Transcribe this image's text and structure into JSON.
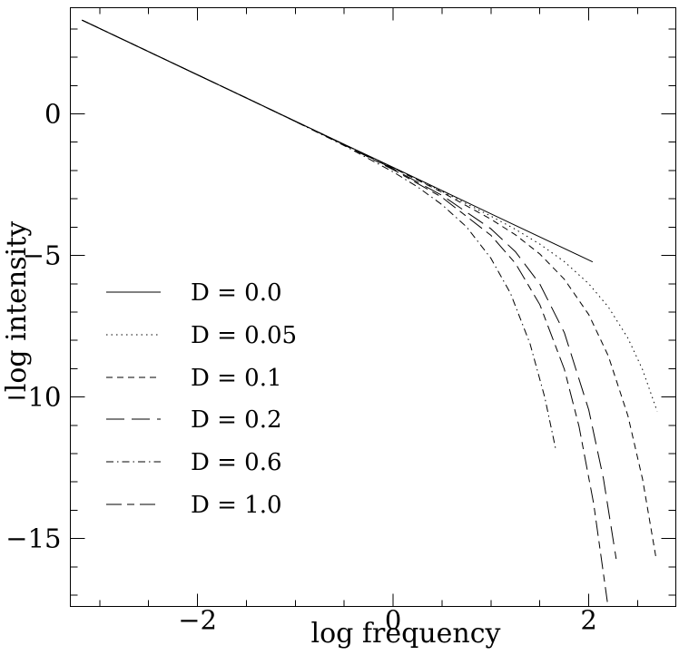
{
  "figure": {
    "background": "#ffffff",
    "line_color": "#000000",
    "line_width": 1
  },
  "chart_data": {
    "type": "line",
    "title": "",
    "xlabel": "log frequency",
    "ylabel": "log intensity",
    "xlim": [
      -3.3,
      2.89
    ],
    "ylim": [
      -17.4,
      3.75
    ],
    "grid": false,
    "x_major_ticks": [
      {
        "v": -2,
        "label": "−2"
      },
      {
        "v": 0,
        "label": "0"
      },
      {
        "v": 2,
        "label": "2"
      }
    ],
    "x_minor_ticks": [
      -3,
      -2.5,
      -1.5,
      -1,
      -0.5,
      0.5,
      1,
      1.5,
      2.5
    ],
    "y_major_ticks": [
      {
        "v": 0,
        "label": "0"
      },
      {
        "v": -5,
        "label": "−5"
      },
      {
        "v": -10,
        "label": "−10"
      },
      {
        "v": -15,
        "label": "−15"
      }
    ],
    "y_minor_ticks": [
      3,
      2,
      1,
      -1,
      -2,
      -3,
      -4,
      -6,
      -7,
      -8,
      -9,
      -11,
      -12,
      -13,
      -14,
      -16,
      -17
    ],
    "line_styles": {
      "solid": [],
      "dotted": [
        1.5,
        4
      ],
      "short-dash": [
        7,
        5
      ],
      "long-dash": [
        20,
        8
      ],
      "dash-dot": [
        8,
        4,
        1.5,
        4
      ],
      "long-short-dash": [
        17,
        6,
        8,
        6
      ]
    },
    "legend": {
      "position": "middle-left",
      "entries": [
        {
          "label": "D = 0.0",
          "line_style": "solid"
        },
        {
          "label": "D = 0.05",
          "line_style": "dotted"
        },
        {
          "label": "D = 0.1",
          "line_style": "short-dash"
        },
        {
          "label": "D = 0.2",
          "line_style": "long-dash"
        },
        {
          "label": "D = 0.6",
          "line_style": "dash-dot"
        },
        {
          "label": "D = 1.0",
          "line_style": "long-short-dash"
        }
      ]
    },
    "series": [
      {
        "name": "D = 0.0",
        "D": 0.0,
        "line_style": "solid",
        "points": [
          [
            -3.18,
            3.31
          ],
          [
            -2,
            1.38
          ],
          [
            -1,
            -0.26
          ],
          [
            0,
            -1.89
          ],
          [
            1,
            -3.53
          ],
          [
            2.04,
            -5.23
          ]
        ]
      },
      {
        "name": "D = 0.05",
        "D": 0.05,
        "line_style": "dotted",
        "points": [
          [
            -3.18,
            3.31
          ],
          [
            -2.5,
            2.2
          ],
          [
            -2,
            1.38
          ],
          [
            -1.5,
            0.56
          ],
          [
            -1,
            -0.26
          ],
          [
            -0.5,
            -1.08
          ],
          [
            0,
            -1.9
          ],
          [
            0.5,
            -2.74
          ],
          [
            1,
            -3.61
          ],
          [
            1.25,
            -4.08
          ],
          [
            1.5,
            -4.6
          ],
          [
            1.75,
            -5.22
          ],
          [
            2,
            -6.0
          ],
          [
            2.2,
            -6.82
          ],
          [
            2.4,
            -7.92
          ],
          [
            2.55,
            -9.04
          ],
          [
            2.7,
            -10.51
          ]
        ]
      },
      {
        "name": "D = 0.1",
        "D": 0.1,
        "line_style": "short-dash",
        "points": [
          [
            -3.18,
            3.31
          ],
          [
            -2.5,
            2.2
          ],
          [
            -2,
            1.38
          ],
          [
            -1.5,
            0.56
          ],
          [
            -1,
            -0.26
          ],
          [
            -0.5,
            -1.08
          ],
          [
            0,
            -1.91
          ],
          [
            0.5,
            -2.77
          ],
          [
            1,
            -3.72
          ],
          [
            1.25,
            -4.27
          ],
          [
            1.5,
            -4.95
          ],
          [
            1.75,
            -5.84
          ],
          [
            2,
            -7.09
          ],
          [
            2.2,
            -8.55
          ],
          [
            2.4,
            -10.66
          ],
          [
            2.55,
            -12.91
          ],
          [
            2.685,
            -15.63
          ]
        ]
      },
      {
        "name": "D = 0.2",
        "D": 0.2,
        "line_style": "long-dash",
        "points": [
          [
            -3.18,
            3.31
          ],
          [
            -2.5,
            2.2
          ],
          [
            -2,
            1.38
          ],
          [
            -1.5,
            0.56
          ],
          [
            -1,
            -0.27
          ],
          [
            -0.5,
            -1.09
          ],
          [
            0,
            -1.94
          ],
          [
            0.5,
            -2.88
          ],
          [
            1,
            -4.06
          ],
          [
            1.25,
            -4.87
          ],
          [
            1.5,
            -6.01
          ],
          [
            1.75,
            -7.73
          ],
          [
            2,
            -10.46
          ],
          [
            2.15,
            -12.89
          ],
          [
            2.28,
            -15.72
          ]
        ]
      },
      {
        "name": "D = 0.6",
        "D": 0.6,
        "line_style": "dash-dot",
        "points": [
          [
            -3.18,
            3.31
          ],
          [
            -2.5,
            2.2
          ],
          [
            -2,
            1.38
          ],
          [
            -1.5,
            0.56
          ],
          [
            -1,
            -0.27
          ],
          [
            -0.5,
            -1.12
          ],
          [
            0,
            -2.05
          ],
          [
            0.25,
            -2.58
          ],
          [
            0.5,
            -3.21
          ],
          [
            0.75,
            -3.99
          ],
          [
            1,
            -5.1
          ],
          [
            1.2,
            -6.34
          ],
          [
            1.4,
            -8.12
          ],
          [
            1.55,
            -10.01
          ],
          [
            1.667,
            -11.92
          ]
        ]
      },
      {
        "name": "D = 1.0",
        "D": 1.0,
        "line_style": "long-short-dash",
        "points": [
          [
            -3.18,
            3.31
          ],
          [
            -2.5,
            2.2
          ],
          [
            -2,
            1.38
          ],
          [
            -1.5,
            0.56
          ],
          [
            -1,
            -0.26
          ],
          [
            -0.5,
            -1.1
          ],
          [
            0,
            -1.97
          ],
          [
            0.5,
            -2.95
          ],
          [
            1,
            -4.29
          ],
          [
            1.25,
            -5.28
          ],
          [
            1.5,
            -6.74
          ],
          [
            1.75,
            -9.02
          ],
          [
            1.9,
            -11.03
          ],
          [
            2.05,
            -13.77
          ],
          [
            2.19,
            -17.24
          ]
        ]
      }
    ]
  }
}
